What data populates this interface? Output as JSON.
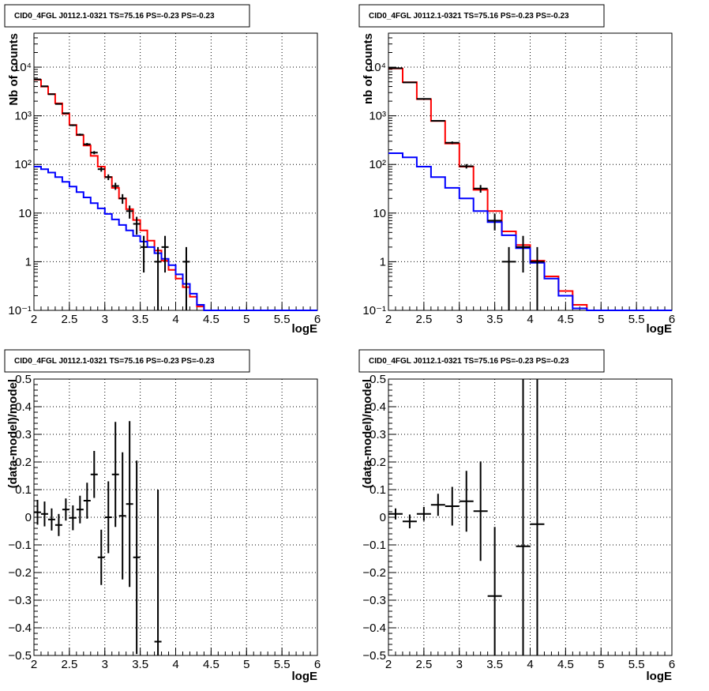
{
  "chart_data": [
    {
      "type": "line",
      "title": "CID0_4FGL J0112.1-0321 TS=75.16 PS=-0.23 PS=-0.23",
      "xlabel": "logE",
      "ylabel": "Nb of counts",
      "yscale": "log",
      "xlim": [
        2,
        6
      ],
      "ylim": [
        0.1,
        50000
      ],
      "xticks": [
        "2",
        "2.5",
        "3",
        "3.5",
        "4",
        "4.5",
        "5",
        "5.5",
        "6"
      ],
      "yticks": [
        "10⁻¹",
        "1",
        "10",
        "10²",
        "10³",
        "10⁴"
      ],
      "grid": true,
      "colors": {
        "total_model": "#ff0000",
        "source_model": "#0000ff",
        "data": "#000000"
      },
      "bin_width": 0.1,
      "bin_edges": [
        2.0,
        2.1,
        2.2,
        2.3,
        2.4,
        2.5,
        2.6,
        2.7,
        2.8,
        2.9,
        3.0,
        3.1,
        3.2,
        3.3,
        3.4,
        3.5,
        3.6,
        3.7,
        3.8,
        3.9,
        4.0,
        4.1,
        4.2,
        4.3,
        4.4,
        4.5,
        4.6,
        4.7,
        4.8,
        4.9,
        5.0,
        5.1,
        5.2,
        5.3,
        5.4,
        5.5,
        5.6,
        5.7,
        5.8,
        5.9,
        6.0
      ],
      "series": [
        {
          "role": "total_model",
          "values": [
            5500,
            4000,
            2800,
            1800,
            1100,
            650,
            400,
            245,
            150,
            90,
            55,
            33,
            20,
            12,
            7.2,
            4.4,
            2.7,
            1.7,
            1.05,
            0.68,
            0.45,
            0.3,
            0.19,
            0.12,
            0.1,
            0.1,
            0.1,
            0.1,
            0.1,
            0.1,
            0.1,
            0.1,
            0.1,
            0.1,
            0.1,
            0.1,
            0.1,
            0.1,
            0.1,
            0.1
          ]
        },
        {
          "role": "source_model",
          "values": [
            90,
            80,
            68,
            55,
            44,
            35,
            27,
            21,
            16,
            12.5,
            9.6,
            7.4,
            5.7,
            4.4,
            3.4,
            2.6,
            2.0,
            1.5,
            1.15,
            0.85,
            0.55,
            0.35,
            0.22,
            0.13,
            0.1,
            0.1,
            0.1,
            0.1,
            0.1,
            0.1,
            0.1,
            0.1,
            0.1,
            0.1,
            0.1,
            0.1,
            0.1,
            0.1,
            0.1,
            0.1
          ]
        },
        {
          "role": "data",
          "points": [
            {
              "x": 2.05,
              "y": 5600,
              "err": 75
            },
            {
              "x": 2.15,
              "y": 4050,
              "err": 64
            },
            {
              "x": 2.25,
              "y": 2780,
              "err": 53
            },
            {
              "x": 2.35,
              "y": 1750,
              "err": 42
            },
            {
              "x": 2.45,
              "y": 1130,
              "err": 34
            },
            {
              "x": 2.55,
              "y": 640,
              "err": 25
            },
            {
              "x": 2.65,
              "y": 410,
              "err": 20
            },
            {
              "x": 2.75,
              "y": 260,
              "err": 16
            },
            {
              "x": 2.85,
              "y": 175,
              "err": 13
            },
            {
              "x": 2.95,
              "y": 80,
              "err": 9
            },
            {
              "x": 3.05,
              "y": 55,
              "err": 7.4
            },
            {
              "x": 3.15,
              "y": 36,
              "err": 6
            },
            {
              "x": 3.25,
              "y": 20,
              "err": 4.5
            },
            {
              "x": 3.35,
              "y": 11,
              "err": 3.3
            },
            {
              "x": 3.45,
              "y": 6,
              "err": 2.4
            },
            {
              "x": 3.55,
              "y": 2,
              "err": 1.4
            },
            {
              "x": 3.75,
              "y": 1,
              "err": 1
            },
            {
              "x": 3.85,
              "y": 2,
              "err": 1.4
            },
            {
              "x": 4.15,
              "y": 1,
              "err": 1
            }
          ]
        }
      ]
    },
    {
      "type": "line",
      "title": "CID0_4FGL J0112.1-0321 TS=75.16 PS=-0.23 PS=-0.23",
      "xlabel": "logE",
      "ylabel": "nb of counts",
      "yscale": "log",
      "xlim": [
        2,
        6
      ],
      "ylim": [
        0.1,
        50000
      ],
      "xticks": [
        "2",
        "2.5",
        "3",
        "3.5",
        "4",
        "4.5",
        "5",
        "5.5",
        "6"
      ],
      "yticks": [
        "10⁻¹",
        "1",
        "10",
        "10²",
        "10³",
        "10⁴"
      ],
      "grid": true,
      "colors": {
        "total_model": "#ff0000",
        "source_model": "#0000ff",
        "data": "#000000"
      },
      "bin_width": 0.2,
      "bin_edges": [
        2.0,
        2.2,
        2.4,
        2.6,
        2.8,
        3.0,
        3.2,
        3.4,
        3.6,
        3.8,
        4.0,
        4.2,
        4.4,
        4.6,
        4.8,
        5.0,
        5.2,
        5.4,
        5.6,
        5.8,
        6.0
      ],
      "series": [
        {
          "role": "total_model",
          "values": [
            9400,
            4900,
            2200,
            780,
            270,
            90,
            30,
            11,
            4.2,
            2.2,
            1.05,
            0.5,
            0.25,
            0.13,
            0.1,
            0.1,
            0.1,
            0.1,
            0.1,
            0.1
          ]
        },
        {
          "role": "source_model",
          "values": [
            170,
            140,
            90,
            55,
            33,
            20,
            11,
            6.5,
            3.5,
            1.9,
            0.95,
            0.45,
            0.2,
            0.11,
            0.1,
            0.1,
            0.1,
            0.1,
            0.1,
            0.1
          ]
        },
        {
          "role": "data",
          "points": [
            {
              "x": 2.1,
              "y": 9500,
              "err": 97
            },
            {
              "x": 2.3,
              "y": 4850,
              "err": 70
            },
            {
              "x": 2.5,
              "y": 2230,
              "err": 47
            },
            {
              "x": 2.7,
              "y": 790,
              "err": 28
            },
            {
              "x": 2.9,
              "y": 280,
              "err": 17
            },
            {
              "x": 3.1,
              "y": 92,
              "err": 9.6
            },
            {
              "x": 3.3,
              "y": 32,
              "err": 5.7
            },
            {
              "x": 3.5,
              "y": 7,
              "err": 2.6
            },
            {
              "x": 3.7,
              "y": 1,
              "err": 1
            },
            {
              "x": 3.9,
              "y": 2,
              "err": 1.4
            },
            {
              "x": 4.1,
              "y": 1,
              "err": 1
            }
          ]
        }
      ]
    },
    {
      "type": "scatter",
      "title": "CID0_4FGL J0112.1-0321 TS=75.16 PS=-0.23 PS=-0.23",
      "xlabel": "logE",
      "ylabel": "(data-model)/model",
      "xlim": [
        2,
        6
      ],
      "ylim": [
        -0.5,
        0.5
      ],
      "xticks": [
        "2",
        "2.5",
        "3",
        "3.5",
        "4",
        "4.5",
        "5",
        "5.5",
        "6"
      ],
      "yticks": [
        "−0.5",
        "−0.4",
        "−0.3",
        "−0.2",
        "−0.1",
        "0",
        "0.1",
        "0.2",
        "0.3",
        "0.4",
        "0.5"
      ],
      "grid": true,
      "bin_width": 0.1,
      "series": [
        {
          "role": "residuals",
          "points": [
            {
              "x": 2.05,
              "y": 0.018,
              "err": 0.045
            },
            {
              "x": 2.15,
              "y": 0.012,
              "err": 0.045
            },
            {
              "x": 2.25,
              "y": -0.008,
              "err": 0.04
            },
            {
              "x": 2.35,
              "y": -0.028,
              "err": 0.04
            },
            {
              "x": 2.45,
              "y": 0.028,
              "err": 0.04
            },
            {
              "x": 2.55,
              "y": -0.002,
              "err": 0.045
            },
            {
              "x": 2.65,
              "y": 0.028,
              "err": 0.05
            },
            {
              "x": 2.75,
              "y": 0.06,
              "err": 0.065
            },
            {
              "x": 2.85,
              "y": 0.155,
              "err": 0.085
            },
            {
              "x": 2.95,
              "y": -0.145,
              "err": 0.1
            },
            {
              "x": 3.05,
              "y": 0.0,
              "err": 0.13
            },
            {
              "x": 3.15,
              "y": 0.155,
              "err": 0.19
            },
            {
              "x": 3.25,
              "y": 0.005,
              "err": 0.23
            },
            {
              "x": 3.35,
              "y": 0.048,
              "err": 0.3
            },
            {
              "x": 3.45,
              "y": -0.145,
              "err": 0.35
            },
            {
              "x": 3.75,
              "y": -0.45,
              "err": 0.55
            }
          ]
        }
      ]
    },
    {
      "type": "scatter",
      "title": "CID0_4FGL J0112.1-0321 TS=75.16 PS=-0.23 PS=-0.23",
      "xlabel": "logE",
      "ylabel": "(data-model)/model",
      "xlim": [
        2,
        6
      ],
      "ylim": [
        -0.5,
        0.5
      ],
      "xticks": [
        "2",
        "2.5",
        "3",
        "3.5",
        "4",
        "4.5",
        "5",
        "5.5",
        "6"
      ],
      "yticks": [
        "−0.5",
        "−0.4",
        "−0.3",
        "−0.2",
        "−0.1",
        "0",
        "0.1",
        "0.2",
        "0.3",
        "0.4",
        "0.5"
      ],
      "grid": true,
      "bin_width": 0.2,
      "series": [
        {
          "role": "residuals",
          "points": [
            {
              "x": 2.1,
              "y": 0.012,
              "err": 0.02
            },
            {
              "x": 2.3,
              "y": -0.015,
              "err": 0.025
            },
            {
              "x": 2.5,
              "y": 0.012,
              "err": 0.025
            },
            {
              "x": 2.7,
              "y": 0.045,
              "err": 0.04
            },
            {
              "x": 2.9,
              "y": 0.04,
              "err": 0.07
            },
            {
              "x": 3.1,
              "y": 0.058,
              "err": 0.11
            },
            {
              "x": 3.3,
              "y": 0.022,
              "err": 0.18
            },
            {
              "x": 3.5,
              "y": -0.285,
              "err": 0.25
            },
            {
              "x": 3.9,
              "y": -0.105,
              "err": 0.7
            },
            {
              "x": 4.1,
              "y": -0.025,
              "err": 0.7
            }
          ]
        }
      ]
    }
  ]
}
